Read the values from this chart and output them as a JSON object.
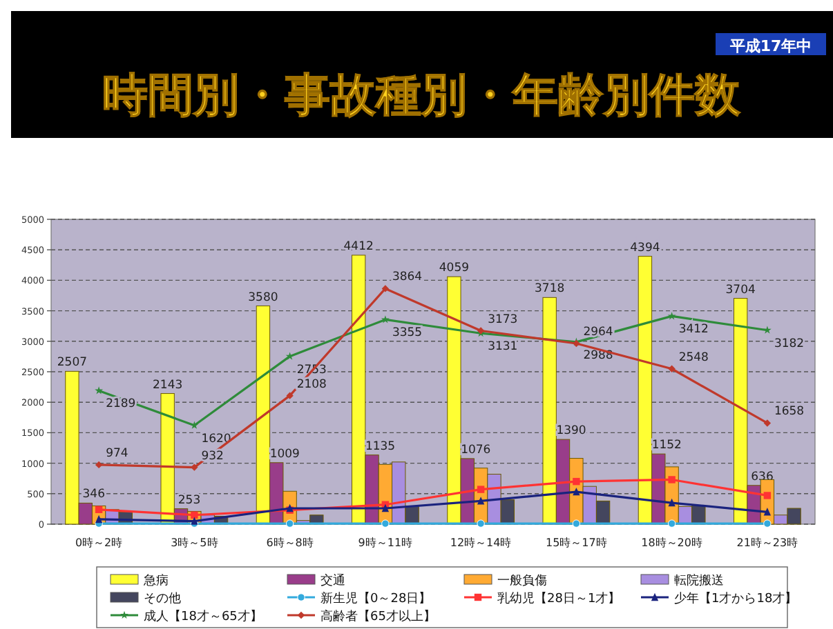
{
  "chart_data": {
    "type": "bar",
    "title": "時間別・事故種別・年齢別件数",
    "subtitle": "平成17年中",
    "categories": [
      "0時～2時",
      "3時～5時",
      "6時～8時",
      "9時～11時",
      "12時～14時",
      "15時～17時",
      "18時～20時",
      "21時～23時"
    ],
    "ylim": [
      0,
      5000
    ],
    "yticks": [
      0,
      500,
      1000,
      1500,
      2000,
      2500,
      3000,
      3500,
      4000,
      4500,
      5000
    ],
    "grid": "y",
    "legend": "bottom",
    "series": [
      {
        "name": "急病",
        "color": "#ffff33",
        "values": [
          2507,
          2143,
          3580,
          4412,
          4059,
          3718,
          4394,
          3704
        ],
        "value_labels": [
          "2507",
          "2143",
          "3580",
          "4412",
          "4059",
          "3718",
          "4394",
          "3704"
        ]
      },
      {
        "name": "交通",
        "color": "#993d8a",
        "values": [
          346,
          253,
          1009,
          1135,
          1076,
          1390,
          1152,
          636
        ],
        "value_labels": [
          "346",
          "253",
          "1009",
          "1135",
          "1076",
          "1390",
          "1152",
          "636"
        ]
      },
      {
        "name": "一般負傷",
        "color": "#ffaa33",
        "values": [
          300,
          210,
          540,
          980,
          920,
          1080,
          940,
          730
        ]
      },
      {
        "name": "転院搬送",
        "color": "#a88ee0",
        "values": [
          240,
          150,
          60,
          1020,
          820,
          620,
          290,
          150
        ]
      },
      {
        "name": "その他",
        "color": "#44465e",
        "values": [
          200,
          130,
          150,
          300,
          400,
          380,
          300,
          260
        ]
      },
      {
        "name": "新生児【0～28日】",
        "type": "line",
        "marker": "circle",
        "color": "#33aadd",
        "values": [
          10,
          10,
          10,
          10,
          10,
          10,
          10,
          10
        ]
      },
      {
        "name": "乳幼児【28日～1才】",
        "type": "line",
        "marker": "square",
        "color": "#ff3333",
        "values": [
          240,
          150,
          230,
          320,
          570,
          700,
          730,
          470
        ]
      },
      {
        "name": "少年【1才から18才】",
        "type": "line",
        "marker": "triangle",
        "color": "#1a237e",
        "values": [
          80,
          50,
          260,
          260,
          380,
          530,
          350,
          200
        ]
      },
      {
        "name": "成人【18才～65才】",
        "type": "line",
        "marker": "star",
        "color": "#2e8b3a",
        "values": [
          2189,
          1620,
          2753,
          3355,
          3131,
          2988,
          3412,
          3182
        ],
        "value_labels": [
          "2189",
          "1620",
          "2753",
          "3355",
          "3131",
          "2988",
          "3412",
          "3182"
        ]
      },
      {
        "name": "高齢者【65才以上】",
        "type": "line",
        "marker": "diamond",
        "color": "#c0392b",
        "values": [
          974,
          932,
          2108,
          3864,
          3173,
          2964,
          2548,
          1658
        ],
        "value_labels": [
          "974",
          "932",
          "2108",
          "3864",
          "3173",
          "2964",
          "2548",
          "1658"
        ]
      }
    ]
  }
}
